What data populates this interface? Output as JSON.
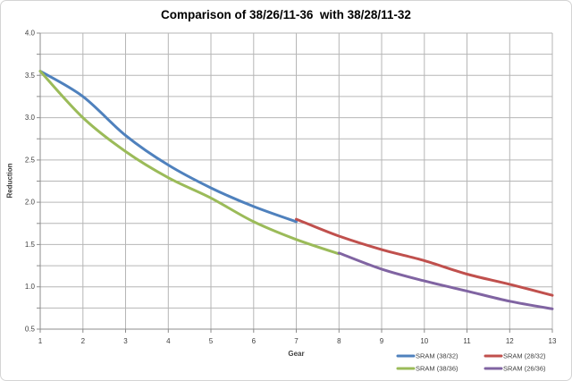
{
  "chart_data": {
    "type": "line",
    "title": "Comparison of 38/26/11-36  with 38/28/11-32",
    "xlabel": "Gear",
    "ylabel": "Reduction",
    "xlim": [
      1,
      13
    ],
    "ylim": [
      0.5,
      4.0
    ],
    "x_ticks": [
      "1",
      "2",
      "3",
      "4",
      "5",
      "6",
      "7",
      "8",
      "9",
      "10",
      "11",
      "12",
      "13"
    ],
    "y_ticks": [
      "4.0",
      "3.5",
      "3.0",
      "2.5",
      "2.0",
      "1.5",
      "1.0",
      "0.5"
    ],
    "y_tick_values": [
      4.0,
      3.5,
      3.0,
      2.5,
      2.0,
      1.5,
      1.0,
      0.5
    ],
    "grid": {
      "visible": true,
      "horizontal_step": 0.25,
      "vertical_step": 1
    },
    "legend": {
      "position": "bottom-right",
      "columns": 2
    },
    "series": [
      {
        "name": "SRAM (38/32)",
        "color": "#4F81BD",
        "x": [
          1,
          2,
          3,
          4,
          5,
          6,
          7
        ],
        "values": [
          3.55,
          3.25,
          2.79,
          2.44,
          2.17,
          1.95,
          1.77
        ]
      },
      {
        "name": "SRAM (38/36)",
        "color": "#9BBB59",
        "x": [
          1,
          2,
          3,
          4,
          5,
          6,
          7,
          8
        ],
        "values": [
          3.55,
          3.0,
          2.6,
          2.29,
          2.05,
          1.77,
          1.56,
          1.39
        ]
      },
      {
        "name": "SRAM (28/32)",
        "color": "#C0504D",
        "x": [
          7,
          8,
          9,
          10,
          11,
          12,
          13
        ],
        "values": [
          1.8,
          1.6,
          1.44,
          1.31,
          1.15,
          1.03,
          0.9
        ]
      },
      {
        "name": "SRAM (26/36)",
        "color": "#8064A2",
        "x": [
          8,
          9,
          10,
          11,
          12,
          13
        ],
        "values": [
          1.4,
          1.21,
          1.07,
          0.95,
          0.83,
          0.74
        ]
      }
    ],
    "colors": {
      "gridline": "#b6b6b6",
      "axis": "#8c8c8c",
      "tick_text": "#404040",
      "title_text": "#000000",
      "background": "#ffffff"
    }
  }
}
